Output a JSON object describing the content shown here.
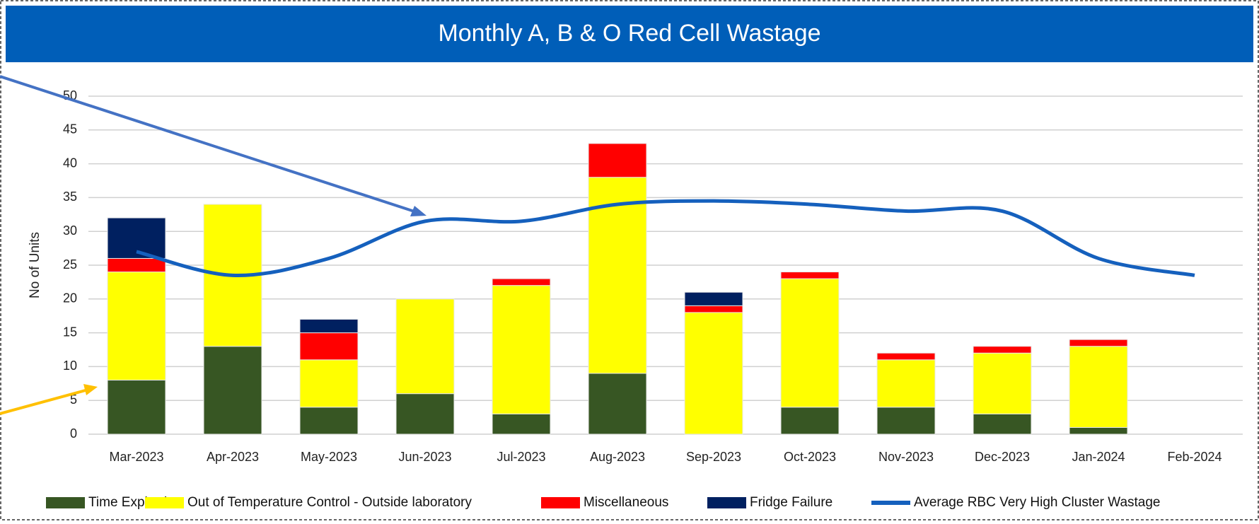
{
  "chart_data": {
    "type": "bar",
    "stacked": true,
    "title": "Monthly A, B & O Red Cell Wastage",
    "y_label": "No of Units",
    "categories": [
      "Mar-2023",
      "Apr-2023",
      "May-2023",
      "Jun-2023",
      "Jul-2023",
      "Aug-2023",
      "Sep-2023",
      "Oct-2023",
      "Nov-2023",
      "Dec-2023",
      "Jan-2024",
      "Feb-2024"
    ],
    "series": [
      {
        "name": "Time Expired",
        "color": "#375623",
        "values": [
          8,
          13,
          4,
          6,
          3,
          9,
          0,
          4,
          4,
          3,
          1,
          null
        ]
      },
      {
        "name": "Out of Temperature Control - Outside laboratory",
        "color": "#ffff00",
        "values": [
          16,
          21,
          7,
          14,
          19,
          29,
          18,
          19,
          7,
          9,
          12,
          null
        ]
      },
      {
        "name": "Miscellaneous",
        "color": "#ff0000",
        "values": [
          2,
          0,
          4,
          0,
          1,
          5,
          1,
          1,
          1,
          1,
          1,
          null
        ]
      },
      {
        "name": "Fridge Failure",
        "color": "#002060",
        "values": [
          6,
          0,
          2,
          0,
          0,
          0,
          2,
          0,
          0,
          0,
          0,
          null
        ]
      },
      {
        "name": "Average RBC Very High Cluster Wastage",
        "color": "#1560bd",
        "type": "line",
        "values": [
          27,
          23.5,
          26,
          31.5,
          31.5,
          34,
          34.5,
          34,
          33,
          33,
          26,
          23.5
        ]
      }
    ],
    "ylim": [
      0,
      50
    ],
    "yticks": [
      0,
      5,
      10,
      15,
      20,
      25,
      30,
      35,
      40,
      45,
      50
    ],
    "grid": true,
    "legend": "bottom"
  }
}
